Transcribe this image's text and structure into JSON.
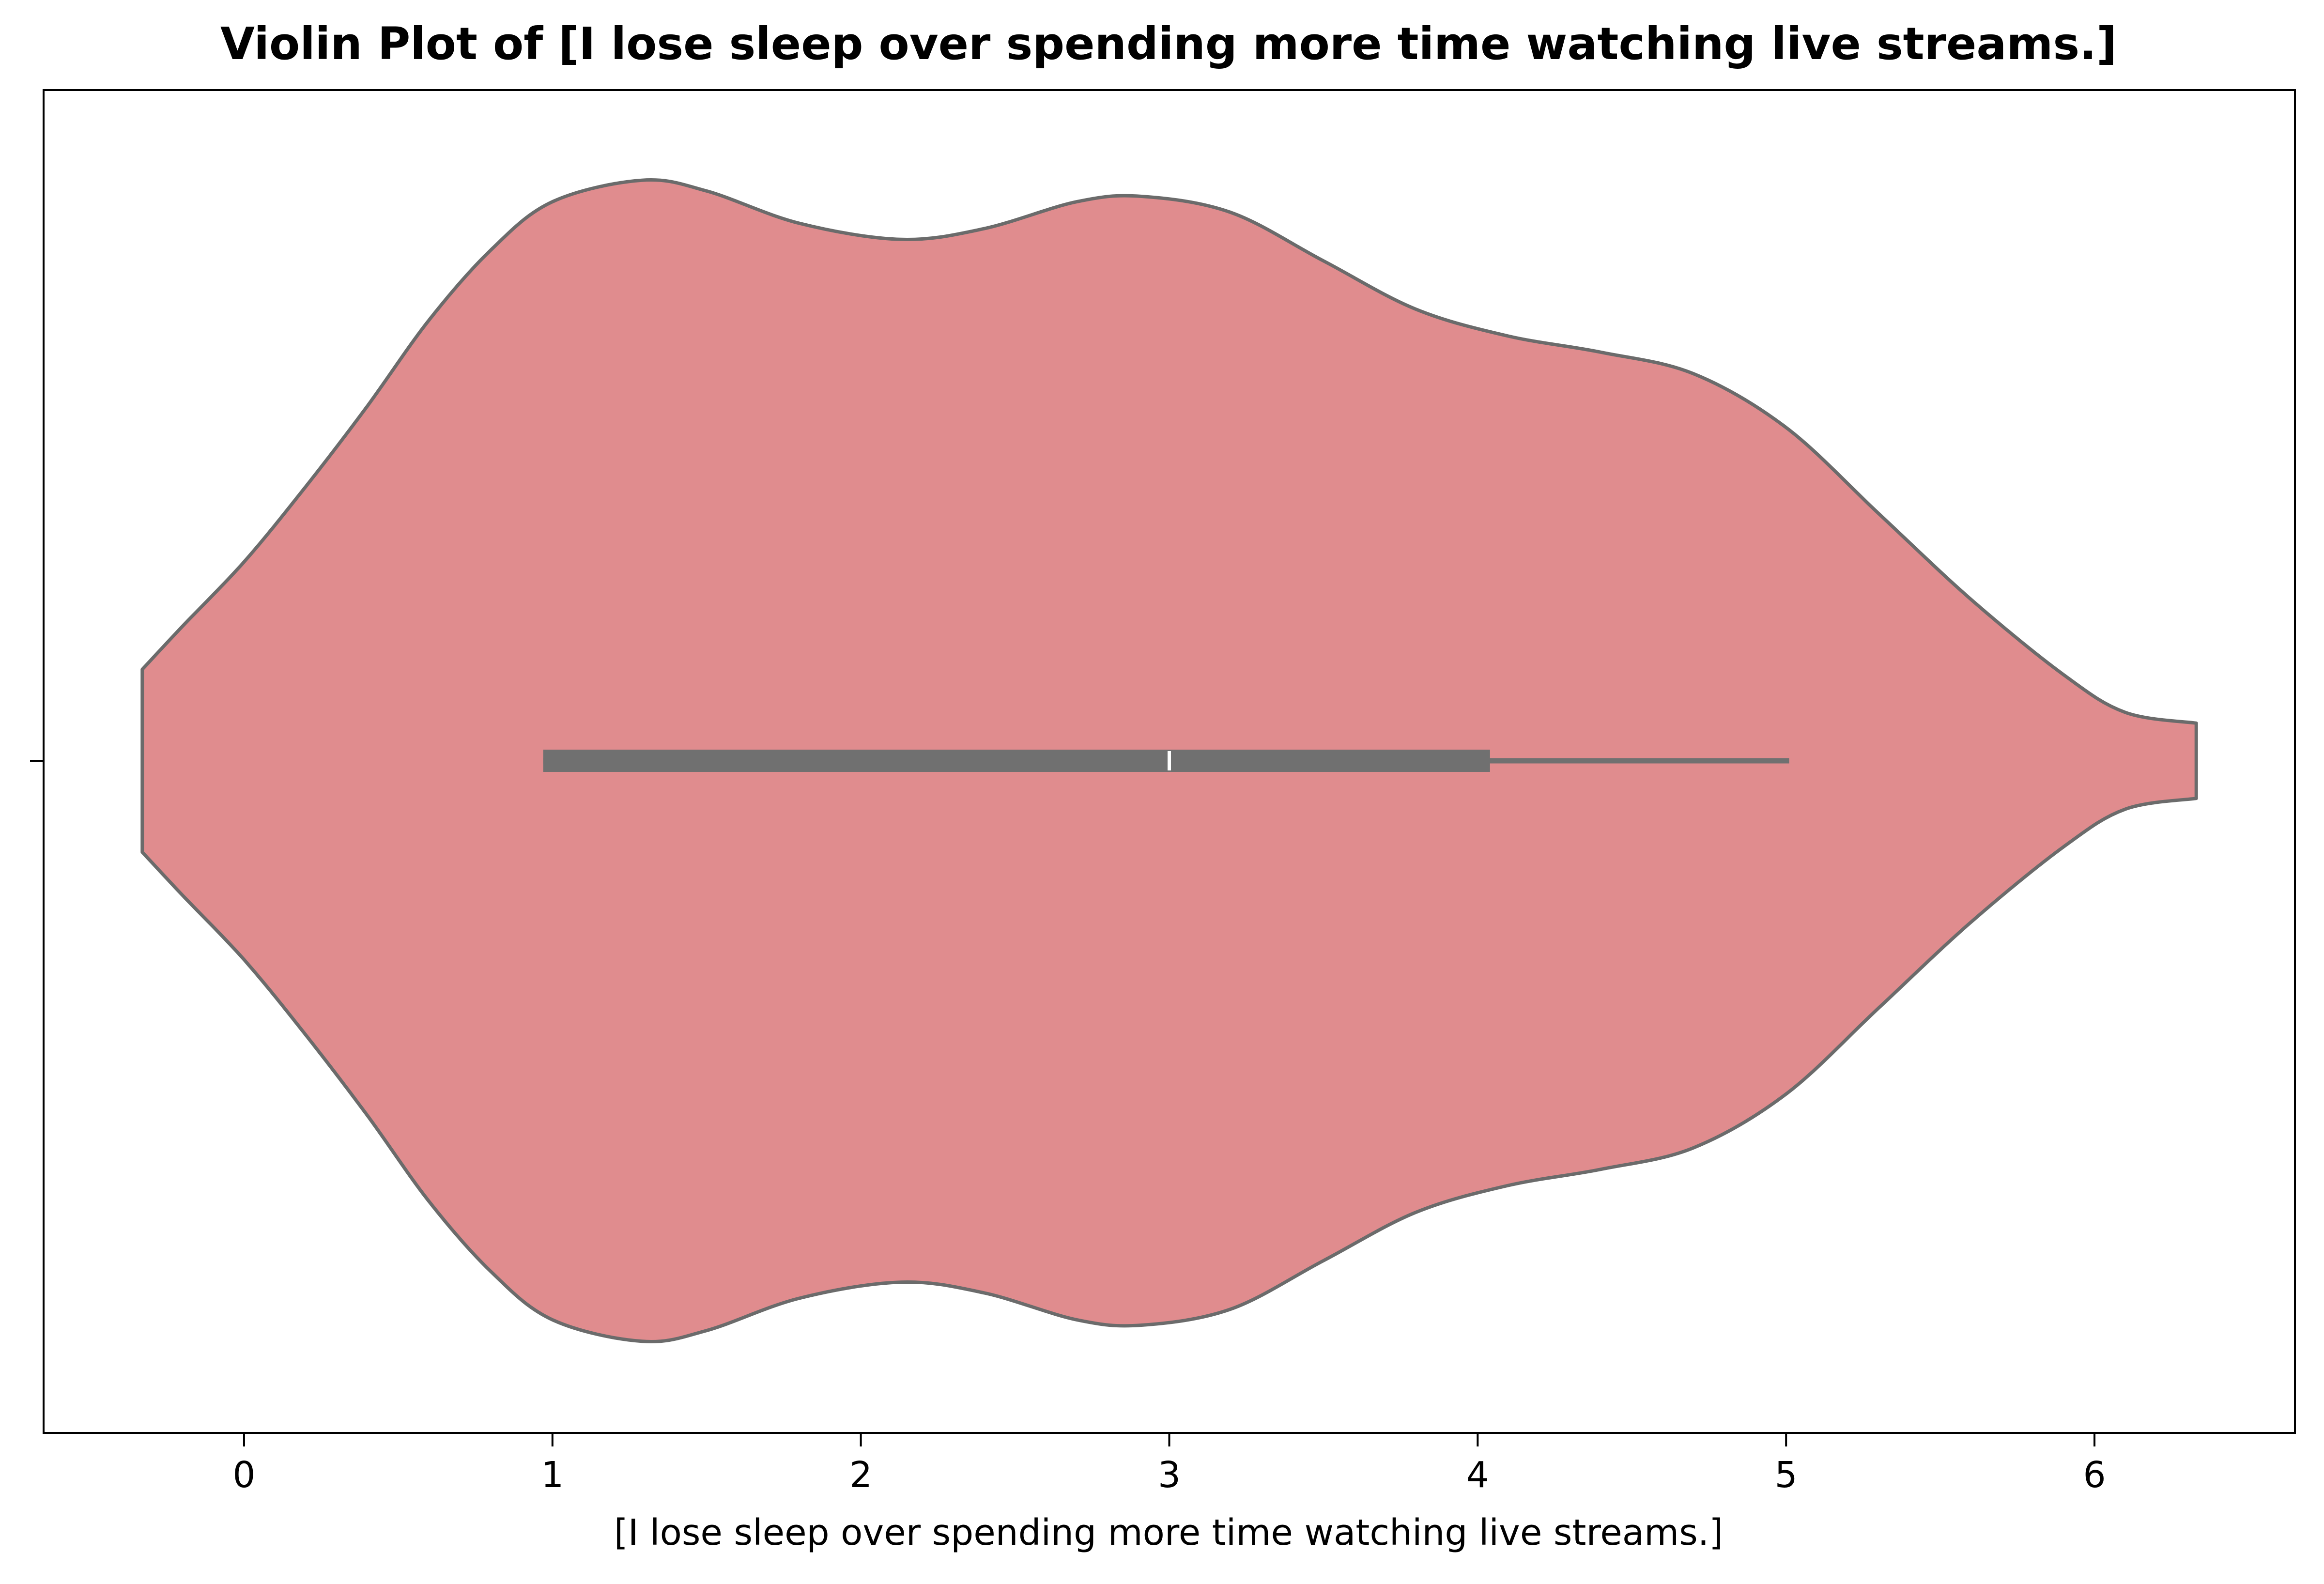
{
  "chart_data": {
    "type": "violin",
    "title": "Violin Plot of [I lose sleep over spending more time watching live streams.]",
    "xlabel": "[I lose sleep over spending more time watching live streams.]",
    "ylabel": "",
    "xlim": [
      -0.65,
      6.65
    ],
    "xticks": [
      0,
      1,
      2,
      3,
      4,
      5,
      6
    ],
    "xtick_labels": [
      "0",
      "1",
      "2",
      "3",
      "4",
      "5",
      "6"
    ],
    "orientation": "horizontal",
    "grid": false,
    "legend": "none",
    "colors": {
      "fill": "#e08c8e",
      "outline": "#6b6b6b",
      "box": "#707070",
      "median": "#ffffff"
    },
    "density": {
      "x": [
        -0.33,
        -0.2,
        0.0,
        0.2,
        0.4,
        0.6,
        0.8,
        1.0,
        1.29,
        1.5,
        1.8,
        2.13,
        2.4,
        2.7,
        2.91,
        3.2,
        3.5,
        3.8,
        4.1,
        4.4,
        4.7,
        5.0,
        5.3,
        5.6,
        5.9,
        6.1,
        6.33
      ],
      "half_width": [
        0.17,
        0.25,
        0.37,
        0.51,
        0.66,
        0.82,
        0.95,
        1.04,
        1.08,
        1.06,
        1.0,
        0.97,
        0.99,
        1.04,
        1.05,
        1.02,
        0.93,
        0.84,
        0.79,
        0.76,
        0.72,
        0.62,
        0.46,
        0.3,
        0.16,
        0.09,
        0.07
      ]
    },
    "box": {
      "q1": 0.97,
      "median": 3.0,
      "q3": 4.04,
      "whisker_low": 0.97,
      "whisker_high": 5.01
    }
  }
}
